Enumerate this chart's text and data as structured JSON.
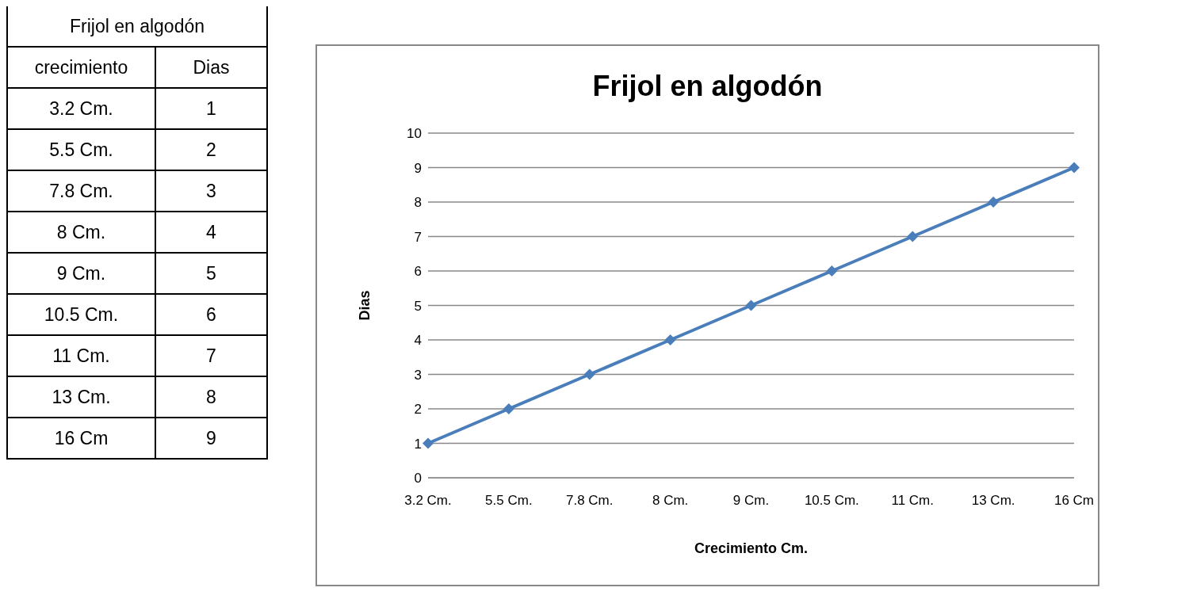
{
  "chart_data": {
    "type": "line",
    "title": "Frijol en algodón",
    "xlabel": "Crecimiento Cm.",
    "ylabel": "Dias",
    "annotations": [
      "Frijol en algodón",
      "crecimiento",
      "Dias",
      "3.2 Cm.",
      "1",
      "5.5 Cm.",
      "2",
      "7.8 Cm.",
      "3",
      "8 Cm.",
      "4",
      "9 Cm.",
      "5",
      "10.5 Cm.",
      "6",
      "11 Cm.",
      "7",
      "13 Cm.",
      "8",
      "16 Cm",
      "9"
    ],
    "categories": [
      "3.2 Cm.",
      "5.5 Cm.",
      "7.8 Cm.",
      "8 Cm.",
      "9 Cm.",
      "10.5 Cm.",
      "11 Cm.",
      "13 Cm.",
      "16 Cm"
    ],
    "values": [
      1,
      2,
      3,
      4,
      5,
      6,
      7,
      8,
      9
    ],
    "color": "#4a7ebb",
    "ylim": [
      0,
      10
    ],
    "yticks": [
      0,
      1,
      2,
      3,
      4,
      5,
      6,
      7,
      8,
      9,
      10
    ],
    "grid": "y",
    "legend": false,
    "marker": "diamond",
    "line_style": "solid"
  }
}
